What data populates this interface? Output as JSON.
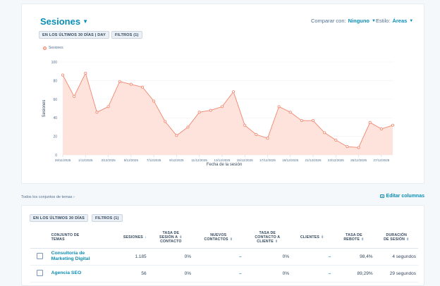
{
  "chart_card": {
    "title": "Sesiones",
    "compare_label": "Comparar con:",
    "compare_value": "Ninguno",
    "style_label": "Estilo:",
    "style_value": "Áreas",
    "filter_date": "EN LOS ÚLTIMOS 30 DÍAS | DAY",
    "filter_count": "FILTROS (1)",
    "legend_label": "Sesiones"
  },
  "chart_data": {
    "type": "area",
    "title": "",
    "ylabel": "Sesiones",
    "xlabel": "Fecha de la sesión",
    "ylim": [
      0,
      100
    ],
    "y_ticks": [
      "0",
      "20",
      "40",
      "60",
      "80",
      "100"
    ],
    "x_tick_labels": [
      "29/11/2025",
      "1/12/2025",
      "3/12/2025",
      "5/12/2025",
      "7/12/2025",
      "9/12/2025",
      "11/12/2025",
      "13/12/2025",
      "15/12/2025",
      "17/12/2025",
      "19/12/2025",
      "21/12/2025",
      "23/12/2025",
      "25/12/2025",
      "27/12/2025"
    ],
    "series": [
      {
        "name": "Sesiones",
        "color": "#f2866e",
        "fill": "#fde3dc",
        "values": [
          86,
          63,
          88,
          46,
          52,
          79,
          76,
          73,
          58,
          36,
          21,
          30,
          46,
          48,
          52,
          68,
          32,
          22,
          18,
          52,
          46,
          37,
          37,
          24,
          16,
          9,
          8,
          35,
          28,
          32
        ]
      }
    ]
  },
  "breadcrumb": "Todos los conjuntos de temas",
  "edit_columns": "Editar columnas",
  "table_card": {
    "filter_date": "EN LOS ÚLTIMOS 30 DÍAS",
    "filter_count": "FILTROS (1)",
    "columns": {
      "topic": [
        "CONJUNTO DE",
        "TEMAS"
      ],
      "sessions": "SESIONES",
      "contact_rate": [
        "TASA DE",
        "SESIÓN A",
        "CONTACTO"
      ],
      "new_contacts": [
        "NUEVOS",
        "CONTACTOS"
      ],
      "client_rate": [
        "TASA DE",
        "CONTACTO A",
        "CLIENTE"
      ],
      "clients": "CLIENTES",
      "bounce": [
        "TASA DE",
        "REBOTE"
      ],
      "duration": [
        "DURACIÓN",
        "DE SESIÓN"
      ]
    },
    "rows": [
      {
        "name": [
          "Consultoría de",
          "Marketing Digital"
        ],
        "sessions": "1.185",
        "contact_rate": "0%",
        "new_contacts": "–",
        "client_rate": "0%",
        "clients": "–",
        "bounce": "98,4%",
        "duration": "4 segundos"
      },
      {
        "name": [
          "Agencia SEO"
        ],
        "sessions": "56",
        "contact_rate": "0%",
        "new_contacts": "–",
        "client_rate": "0%",
        "clients": "–",
        "bounce": "89,29%",
        "duration": "29 segundos"
      }
    ]
  }
}
